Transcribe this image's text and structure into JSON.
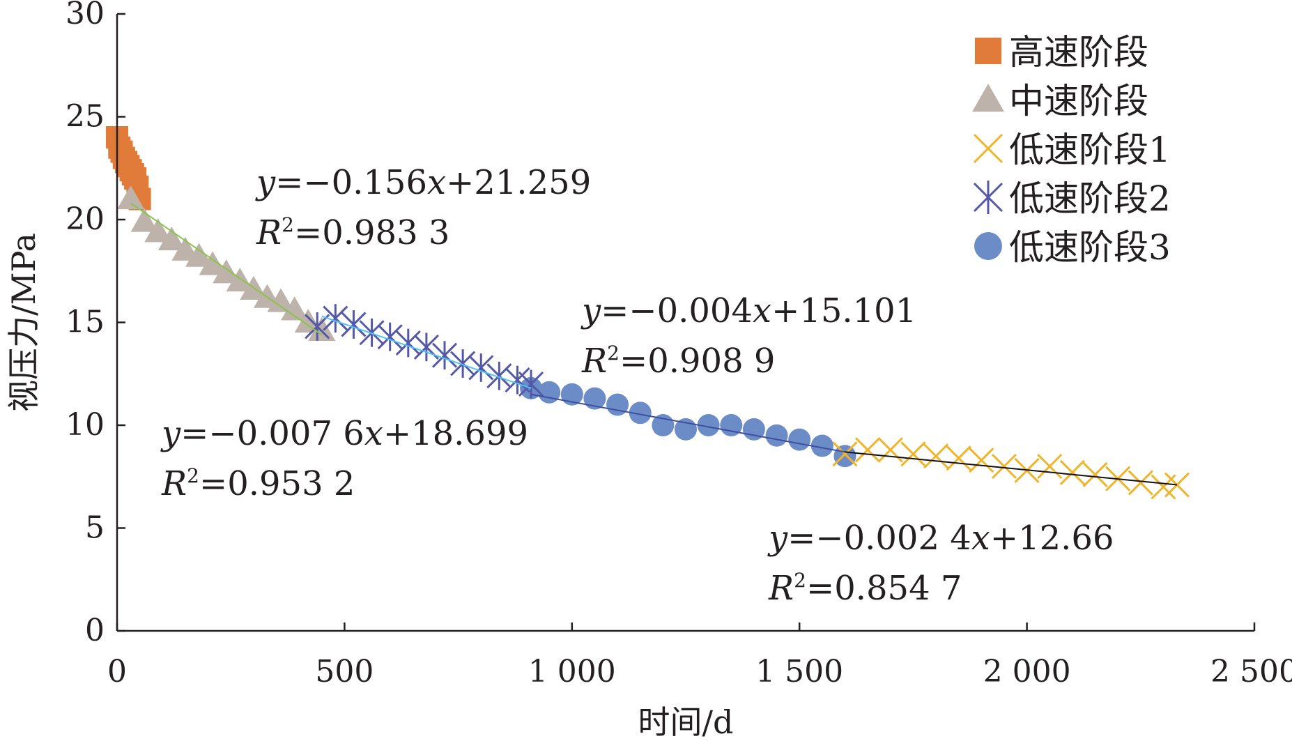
{
  "chart_data": {
    "type": "scatter",
    "xlabel": "时间/d",
    "ylabel": "视压力/MPa",
    "xlim": [
      0,
      2500
    ],
    "ylim": [
      0,
      30
    ],
    "xticks": [
      0,
      500,
      1000,
      1500,
      2000,
      2500
    ],
    "xtick_labels": [
      "0",
      "500",
      "1 000",
      "1 500",
      "2 000",
      "2 500"
    ],
    "yticks": [
      0,
      5,
      10,
      15,
      20,
      25,
      30
    ],
    "ytick_labels": [
      "0",
      "5",
      "10",
      "15",
      "20",
      "25",
      "30"
    ],
    "grid": false,
    "legend_position": "top-right",
    "series": [
      {
        "name": "高速阶段",
        "marker": "square",
        "color": "#e07b39",
        "x": [
          0,
          5,
          10,
          15,
          20,
          25,
          30,
          35,
          40,
          45,
          50
        ],
        "y": [
          24.0,
          23.5,
          23.3,
          23.0,
          22.8,
          22.6,
          22.4,
          22.2,
          22.0,
          21.6,
          21.0
        ]
      },
      {
        "name": "中速阶段",
        "marker": "triangle",
        "color": "#bdb3ab",
        "x": [
          30,
          60,
          90,
          120,
          150,
          180,
          210,
          240,
          270,
          300,
          330,
          360,
          390,
          420,
          450
        ],
        "y": [
          21.0,
          19.9,
          19.4,
          19.0,
          18.5,
          18.2,
          17.8,
          17.4,
          17.0,
          16.6,
          16.2,
          16.0,
          15.6,
          15.0,
          14.6
        ]
      },
      {
        "name": "低速阶段1",
        "marker": "x",
        "color": "#f0b429",
        "x": [
          1600,
          1650,
          1700,
          1750,
          1800,
          1850,
          1900,
          1950,
          2000,
          2050,
          2100,
          2150,
          2200,
          2250,
          2300,
          2330
        ],
        "y": [
          8.6,
          8.8,
          8.8,
          8.6,
          8.5,
          8.4,
          8.3,
          8.0,
          7.8,
          8.0,
          7.7,
          7.6,
          7.4,
          7.2,
          7.0,
          7.1
        ]
      },
      {
        "name": "低速阶段2",
        "marker": "asterisk",
        "color": "#5358a8",
        "x": [
          440,
          480,
          520,
          560,
          600,
          640,
          680,
          720,
          760,
          800,
          840,
          880,
          910
        ],
        "y": [
          14.8,
          15.2,
          14.9,
          14.5,
          14.3,
          14.0,
          13.8,
          13.4,
          13.0,
          12.8,
          12.4,
          12.2,
          12.0
        ]
      },
      {
        "name": "低速阶段3",
        "marker": "circle",
        "color": "#6b8cc6",
        "x": [
          910,
          950,
          1000,
          1050,
          1100,
          1150,
          1200,
          1250,
          1300,
          1350,
          1400,
          1450,
          1500,
          1550,
          1600
        ],
        "y": [
          11.8,
          11.6,
          11.5,
          11.3,
          11.0,
          10.6,
          10.0,
          9.8,
          10.0,
          10.0,
          9.8,
          9.5,
          9.3,
          9.0,
          8.5
        ]
      }
    ],
    "fit_lines": [
      {
        "x": [
          30,
          450
        ],
        "y": [
          20.8,
          14.4
        ],
        "color": "#8bc34a"
      },
      {
        "x": [
          450,
          910
        ],
        "y": [
          15.3,
          11.8
        ],
        "color": "#4fc3f7"
      },
      {
        "x": [
          910,
          1600
        ],
        "y": [
          11.5,
          8.7
        ],
        "color": "#3d4f9e"
      },
      {
        "x": [
          1600,
          2330
        ],
        "y": [
          8.7,
          7.1
        ],
        "color": "#111111"
      }
    ],
    "annotations": [
      {
        "eq_prefix": "y",
        "eq_rest": "=−0.156",
        "eq_var": "x",
        "eq_const": "+21.259",
        "r2_value": "=0.983 3"
      },
      {
        "eq_prefix": "y",
        "eq_rest": "=−0.004",
        "eq_var": "x",
        "eq_const": "+15.101",
        "r2_value": "=0.908 9"
      },
      {
        "eq_prefix": "y",
        "eq_rest": "=−0.007 6",
        "eq_var": "x",
        "eq_const": "+18.699",
        "r2_value": "=0.953 2"
      },
      {
        "eq_prefix": "y",
        "eq_rest": "=−0.002 4",
        "eq_var": "x",
        "eq_const": "+12.66",
        "r2_value": "=0.854 7"
      }
    ],
    "r2_letter": "R",
    "r2_sup": "2"
  }
}
